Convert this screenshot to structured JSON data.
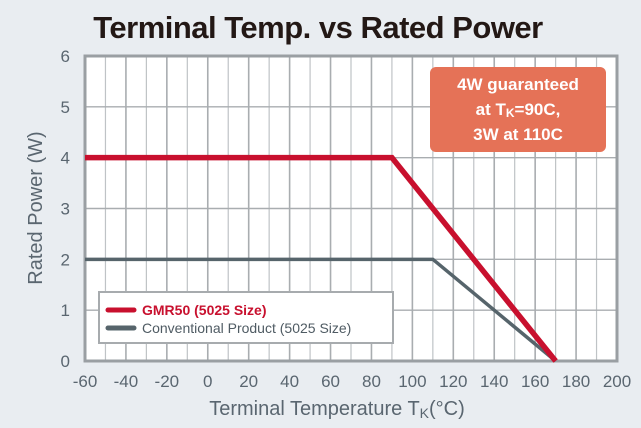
{
  "chart_data": {
    "type": "line",
    "title": "Terminal Temp. vs Rated Power",
    "xlabel": "Terminal Temperature T",
    "xlabel_subscript": "K",
    "xlabel_suffix": "(°C)",
    "ylabel": "Rated Power (W)",
    "xlim": [
      -60,
      200
    ],
    "ylim": [
      0,
      6
    ],
    "xticks": [
      -60,
      -40,
      -20,
      0,
      20,
      40,
      60,
      80,
      100,
      120,
      140,
      160,
      180,
      200
    ],
    "yticks": [
      0,
      1,
      2,
      3,
      4,
      5,
      6
    ],
    "x_minor_step": 10,
    "grid": true,
    "legend_position": "bottom-left",
    "series": [
      {
        "name": "GMR50 (5025 Size)",
        "color": "#c8102e",
        "points": [
          [
            -60,
            4
          ],
          [
            90,
            4
          ],
          [
            170,
            0
          ]
        ]
      },
      {
        "name": "Conventional Product (5025 Size)",
        "color": "#56646b",
        "points": [
          [
            -60,
            2
          ],
          [
            110,
            2
          ],
          [
            170,
            0
          ]
        ]
      }
    ],
    "annotation": {
      "lines": [
        "4W guaranteed",
        "at T",
        "K",
        "=90C,",
        "3W at 110C"
      ],
      "line1": "4W guaranteed",
      "line2_prefix": "at T",
      "line2_sub": "K",
      "line2_suffix": "=90C,",
      "line3": "3W at 110C",
      "background": "#e57257"
    }
  }
}
